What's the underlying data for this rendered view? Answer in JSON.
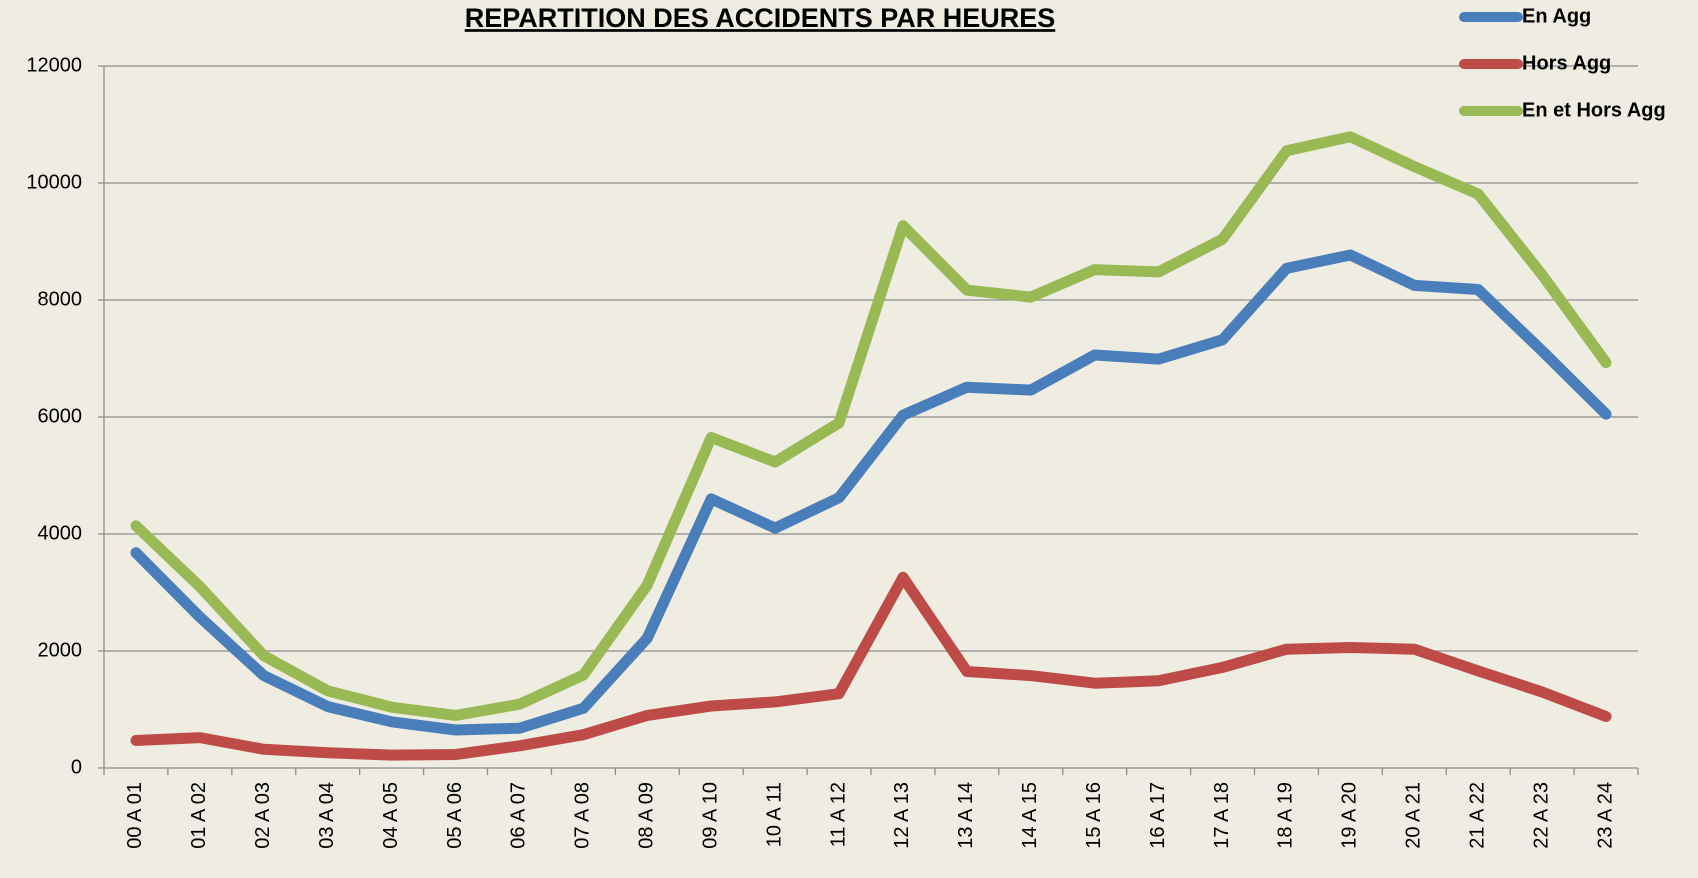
{
  "chart_data": {
    "type": "line",
    "title": "REPARTITION DES ACCIDENTS PAR HEURES",
    "categories": [
      "00 A 01",
      "01 A 02",
      "02 A 03",
      "03 A 04",
      "04 A 05",
      "05 A 06",
      "06 A 07",
      "07 A 08",
      "08 A 09",
      "09 A 10",
      "10 A 11",
      "11 A 12",
      "12 A 13",
      "13 A 14",
      "14 A 15",
      "15 A 16",
      "16 A 17",
      "17 A 18",
      "18 A 19",
      "19 A 20",
      "20 A 21",
      "21 A 22",
      "22 A 23",
      "23 A 24"
    ],
    "series": [
      {
        "name": "En Agg",
        "color": "#4a7ebb",
        "values": [
          3680,
          2580,
          1580,
          1050,
          790,
          650,
          680,
          1020,
          2220,
          4600,
          4100,
          4620,
          6030,
          6510,
          6460,
          7060,
          6990,
          7320,
          8540,
          8770,
          8250,
          8180,
          7130,
          6050
        ]
      },
      {
        "name": "Hors Agg",
        "color": "#be4b48",
        "values": [
          470,
          520,
          320,
          260,
          220,
          230,
          380,
          570,
          900,
          1060,
          1130,
          1270,
          3260,
          1650,
          1580,
          1450,
          1490,
          1720,
          2030,
          2060,
          2030,
          1660,
          1300,
          880
        ]
      },
      {
        "name": "En et Hors Agg",
        "color": "#98b954",
        "values": [
          4140,
          3100,
          1920,
          1320,
          1040,
          900,
          1090,
          1590,
          3130,
          5650,
          5230,
          5900,
          9270,
          8170,
          8050,
          8520,
          8480,
          9040,
          10550,
          10790,
          10280,
          9810,
          8430,
          6930
        ]
      }
    ],
    "ylim": [
      0,
      12000
    ],
    "yticks": [
      0,
      2000,
      4000,
      6000,
      8000,
      10000,
      12000
    ],
    "grid": true,
    "legend": "top-right"
  }
}
